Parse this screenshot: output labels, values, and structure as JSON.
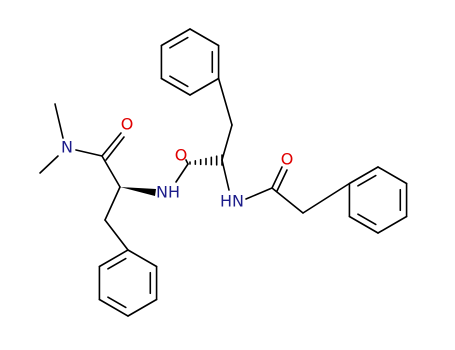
{
  "atoms": [
    "N",
    "O",
    "NH",
    "O",
    "HN",
    "O"
  ]
}
